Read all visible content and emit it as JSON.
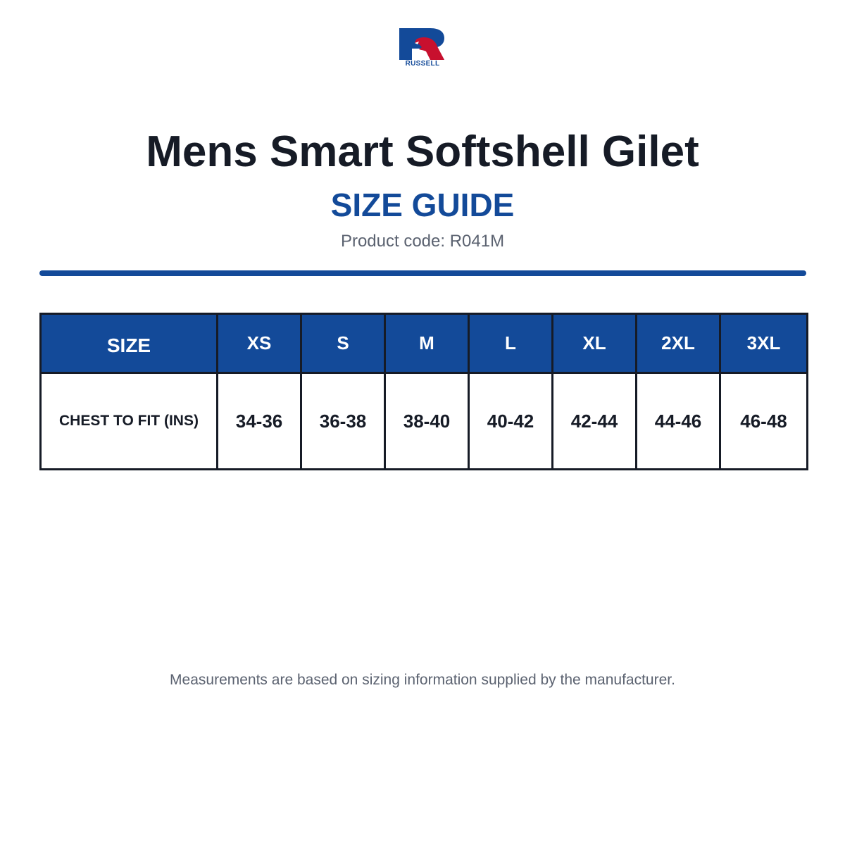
{
  "brand": {
    "logo_text": "RUSSELL",
    "colors": {
      "blue": "#134a99",
      "red": "#c8102e"
    }
  },
  "header": {
    "title": "Mens Smart Softshell Gilet",
    "subtitle": "SIZE GUIDE",
    "product_code": "Product code: R041M"
  },
  "size_table": {
    "header_label": "SIZE",
    "sizes": [
      "XS",
      "S",
      "M",
      "L",
      "XL",
      "2XL",
      "3XL"
    ],
    "rows": [
      {
        "label": "CHEST TO FIT (INS)",
        "values": [
          "34-36",
          "36-38",
          "38-40",
          "40-42",
          "42-44",
          "44-46",
          "46-48"
        ]
      }
    ]
  },
  "footer": {
    "note": "Measurements are based on sizing information supplied by the manufacturer."
  }
}
